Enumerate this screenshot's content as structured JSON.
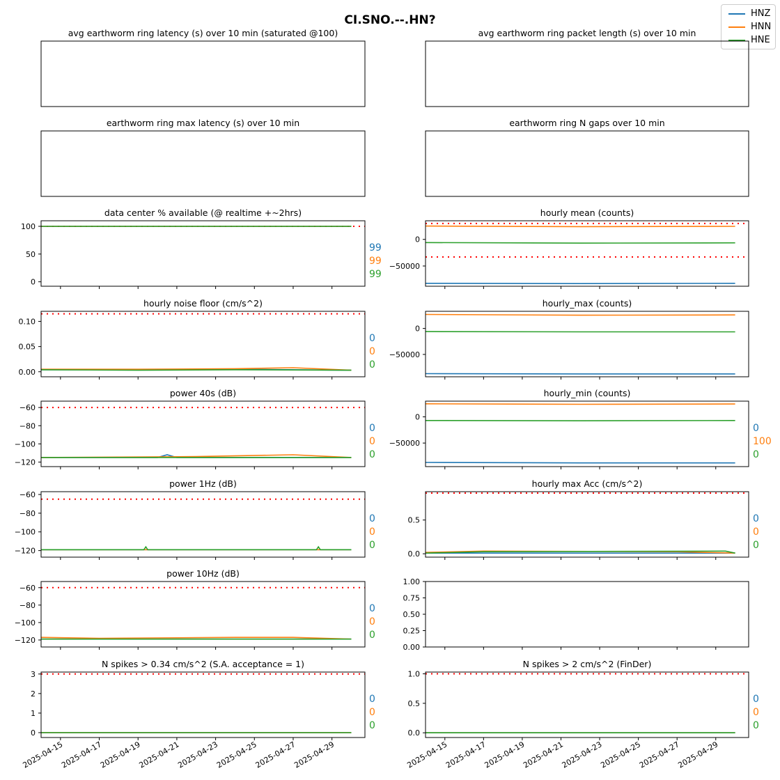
{
  "figure": {
    "title": "CI.SNO.--.HN?",
    "legend": [
      "HNZ",
      "HNN",
      "HNE"
    ]
  },
  "colors": {
    "HNZ": "#1f77b4",
    "HNN": "#ff7f0e",
    "HNE": "#2ca02c",
    "threshold": "#ff0000"
  },
  "chart_data": [
    {
      "id": "avg-latency",
      "type": "line",
      "title": "avg earthworm ring latency (s)   over 10 min (saturated @100)",
      "ticks": false,
      "series": [],
      "side_labels": []
    },
    {
      "id": "avg-packet-length",
      "type": "line",
      "title": "avg earthworm ring packet length (s)   over 10 min",
      "ticks": false,
      "series": [],
      "side_labels": []
    },
    {
      "id": "max-latency",
      "type": "line",
      "title": "earthworm ring max latency (s)   over 10 min",
      "ticks": false,
      "series": [],
      "side_labels": []
    },
    {
      "id": "n-gaps",
      "type": "line",
      "title": "earthworm ring N gaps   over 10 min",
      "ticks": false,
      "series": [],
      "side_labels": []
    },
    {
      "id": "data-available",
      "type": "line",
      "title": "data center % available (@ realtime +~2hrs)",
      "ylim": [
        -8,
        110
      ],
      "yticks": [
        0,
        50,
        100
      ],
      "ytick_labels": [
        "0",
        "50",
        "100"
      ],
      "thresholds": [
        100
      ],
      "series": [
        {
          "channel": "HNZ",
          "values": [
            {
              "x": "2025-04-14",
              "y": 100
            },
            {
              "x": "2025-04-30",
              "y": 100
            }
          ]
        },
        {
          "channel": "HNN",
          "values": [
            {
              "x": "2025-04-14",
              "y": 100
            },
            {
              "x": "2025-04-30",
              "y": 100
            }
          ]
        },
        {
          "channel": "HNE",
          "values": [
            {
              "x": "2025-04-14",
              "y": 100
            },
            {
              "x": "2025-04-30",
              "y": 100
            }
          ]
        }
      ],
      "side_labels": [
        "99",
        "99",
        "99"
      ]
    },
    {
      "id": "hourly-mean",
      "type": "line",
      "title": "hourly mean (counts)",
      "ylim": [
        -88000,
        35000
      ],
      "yticks": [
        0,
        -50000
      ],
      "ytick_labels": [
        "0",
        "−50000"
      ],
      "thresholds": [
        30000,
        -33000
      ],
      "series": [
        {
          "channel": "HNZ",
          "values": [
            {
              "x": "2025-04-14",
              "y": -82500
            },
            {
              "x": "2025-04-22",
              "y": -83000
            },
            {
              "x": "2025-04-30",
              "y": -82500
            }
          ]
        },
        {
          "channel": "HNN",
          "values": [
            {
              "x": "2025-04-14",
              "y": 25000
            },
            {
              "x": "2025-04-22",
              "y": 24000
            },
            {
              "x": "2025-04-30",
              "y": 24500
            }
          ]
        },
        {
          "channel": "HNE",
          "values": [
            {
              "x": "2025-04-14",
              "y": -6000
            },
            {
              "x": "2025-04-22",
              "y": -7000
            },
            {
              "x": "2025-04-30",
              "y": -6500
            }
          ]
        }
      ],
      "side_labels": []
    },
    {
      "id": "noise-floor",
      "type": "line",
      "title": "hourly noise floor (cm/s^2)",
      "ylim": [
        -0.01,
        0.12
      ],
      "yticks": [
        0,
        0.05,
        0.1
      ],
      "ytick_labels": [
        "0.00",
        "0.05",
        "0.10"
      ],
      "thresholds": [
        0.115
      ],
      "series": [
        {
          "channel": "HNZ",
          "values": [
            {
              "x": "2025-04-14",
              "y": 0.004
            },
            {
              "x": "2025-04-19",
              "y": 0.004
            },
            {
              "x": "2025-04-24",
              "y": 0.005
            },
            {
              "x": "2025-04-30",
              "y": 0.003
            }
          ]
        },
        {
          "channel": "HNN",
          "values": [
            {
              "x": "2025-04-14",
              "y": 0.005
            },
            {
              "x": "2025-04-19",
              "y": 0.005
            },
            {
              "x": "2025-04-24",
              "y": 0.006
            },
            {
              "x": "2025-04-27",
              "y": 0.008
            },
            {
              "x": "2025-04-30",
              "y": 0.003
            }
          ]
        },
        {
          "channel": "HNE",
          "values": [
            {
              "x": "2025-04-14",
              "y": 0.004
            },
            {
              "x": "2025-04-19",
              "y": 0.003
            },
            {
              "x": "2025-04-24",
              "y": 0.004
            },
            {
              "x": "2025-04-30",
              "y": 0.003
            }
          ]
        }
      ],
      "side_labels": [
        "0",
        "0",
        "0"
      ]
    },
    {
      "id": "hourly-max",
      "type": "line",
      "title": "hourly_max (counts)",
      "ylim": [
        -93000,
        33000
      ],
      "yticks": [
        0,
        -50000
      ],
      "ytick_labels": [
        "0",
        "−50000"
      ],
      "thresholds": [],
      "series": [
        {
          "channel": "HNZ",
          "values": [
            {
              "x": "2025-04-14",
              "y": -87000
            },
            {
              "x": "2025-04-22",
              "y": -87500
            },
            {
              "x": "2025-04-30",
              "y": -87500
            }
          ]
        },
        {
          "channel": "HNN",
          "values": [
            {
              "x": "2025-04-14",
              "y": 27000
            },
            {
              "x": "2025-04-22",
              "y": 25500
            },
            {
              "x": "2025-04-30",
              "y": 26000
            }
          ]
        },
        {
          "channel": "HNE",
          "values": [
            {
              "x": "2025-04-14",
              "y": -6000
            },
            {
              "x": "2025-04-22",
              "y": -6500
            },
            {
              "x": "2025-04-30",
              "y": -6500
            }
          ]
        }
      ],
      "side_labels": []
    },
    {
      "id": "power-40s",
      "type": "line",
      "title": "power 40s (dB)",
      "ylim": [
        -125,
        -53
      ],
      "yticks": [
        -60,
        -80,
        -100,
        -120
      ],
      "ytick_labels": [
        "−60",
        "−80",
        "−100",
        "−120"
      ],
      "thresholds": [
        -60
      ],
      "series": [
        {
          "channel": "HNZ",
          "values": [
            {
              "x": "2025-04-14",
              "y": -115
            },
            {
              "x": "2025-04-20",
              "y": -115
            },
            {
              "x": "2025-04-20.5",
              "y": -112
            },
            {
              "x": "2025-04-21",
              "y": -115
            },
            {
              "x": "2025-04-30",
              "y": -115
            }
          ]
        },
        {
          "channel": "HNN",
          "values": [
            {
              "x": "2025-04-14",
              "y": -115
            },
            {
              "x": "2025-04-22",
              "y": -114
            },
            {
              "x": "2025-04-27",
              "y": -112
            },
            {
              "x": "2025-04-30",
              "y": -115
            }
          ]
        },
        {
          "channel": "HNE",
          "values": [
            {
              "x": "2025-04-14",
              "y": -115
            },
            {
              "x": "2025-04-22",
              "y": -115
            },
            {
              "x": "2025-04-30",
              "y": -115
            }
          ]
        }
      ],
      "side_labels": [
        "0",
        "0",
        "0"
      ]
    },
    {
      "id": "hourly-min",
      "type": "line",
      "title": "hourly_min (counts)",
      "ylim": [
        -95000,
        30000
      ],
      "yticks": [
        0,
        -50000
      ],
      "ytick_labels": [
        "0",
        "−50000"
      ],
      "thresholds": [],
      "series": [
        {
          "channel": "HNZ",
          "values": [
            {
              "x": "2025-04-14",
              "y": -87000
            },
            {
              "x": "2025-04-22",
              "y": -88000
            },
            {
              "x": "2025-04-30",
              "y": -88000
            }
          ]
        },
        {
          "channel": "HNN",
          "values": [
            {
              "x": "2025-04-14",
              "y": 25000
            },
            {
              "x": "2025-04-22",
              "y": 24000
            },
            {
              "x": "2025-04-30",
              "y": 24500
            }
          ]
        },
        {
          "channel": "HNE",
          "values": [
            {
              "x": "2025-04-14",
              "y": -7000
            },
            {
              "x": "2025-04-22",
              "y": -7500
            },
            {
              "x": "2025-04-30",
              "y": -7000
            }
          ]
        }
      ],
      "side_labels": [
        "0",
        "100",
        "0"
      ]
    },
    {
      "id": "power-1hz",
      "type": "line",
      "title": "power 1Hz (dB)",
      "ylim": [
        -127,
        -57
      ],
      "yticks": [
        -60,
        -80,
        -100,
        -120
      ],
      "ytick_labels": [
        "−60",
        "−80",
        "−100",
        "−120"
      ],
      "thresholds": [
        -65
      ],
      "series": [
        {
          "channel": "HNZ",
          "values": [
            {
              "x": "2025-04-14",
              "y": -119
            },
            {
              "x": "2025-04-30",
              "y": -119
            }
          ]
        },
        {
          "channel": "HNN",
          "values": [
            {
              "x": "2025-04-14",
              "y": -119
            },
            {
              "x": "2025-04-30",
              "y": -119
            }
          ]
        },
        {
          "channel": "HNE",
          "values": [
            {
              "x": "2025-04-14",
              "y": -119
            },
            {
              "x": "2025-04-19.3",
              "y": -119
            },
            {
              "x": "2025-04-19.4",
              "y": -116
            },
            {
              "x": "2025-04-19.5",
              "y": -119
            },
            {
              "x": "2025-04-28.2",
              "y": -119
            },
            {
              "x": "2025-04-28.3",
              "y": -116
            },
            {
              "x": "2025-04-28.4",
              "y": -119
            },
            {
              "x": "2025-04-30",
              "y": -119
            }
          ]
        }
      ],
      "side_labels": [
        "0",
        "0",
        "0"
      ]
    },
    {
      "id": "hourly-max-acc",
      "type": "line",
      "title": "hourly max Acc (cm/s^2)",
      "ylim": [
        -0.05,
        0.92
      ],
      "yticks": [
        0,
        0.5
      ],
      "ytick_labels": [
        "0.0",
        "0.5"
      ],
      "thresholds": [
        0.9
      ],
      "series": [
        {
          "channel": "HNZ",
          "values": [
            {
              "x": "2025-04-14",
              "y": 0.01
            },
            {
              "x": "2025-04-30",
              "y": 0.01
            }
          ]
        },
        {
          "channel": "HNN",
          "values": [
            {
              "x": "2025-04-14",
              "y": 0.02
            },
            {
              "x": "2025-04-17",
              "y": 0.04
            },
            {
              "x": "2025-04-27",
              "y": 0.03
            },
            {
              "x": "2025-04-30",
              "y": 0.01
            }
          ]
        },
        {
          "channel": "HNE",
          "values": [
            {
              "x": "2025-04-14",
              "y": 0.01
            },
            {
              "x": "2025-04-17",
              "y": 0.03
            },
            {
              "x": "2025-04-29.5",
              "y": 0.04
            },
            {
              "x": "2025-04-30",
              "y": 0.01
            }
          ]
        }
      ],
      "side_labels": [
        "0",
        "0",
        "0"
      ]
    },
    {
      "id": "power-10hz",
      "type": "line",
      "title": "power 10Hz (dB)",
      "ylim": [
        -128,
        -53
      ],
      "yticks": [
        -60,
        -80,
        -100,
        -120
      ],
      "ytick_labels": [
        "−60",
        "−80",
        "−100",
        "−120"
      ],
      "thresholds": [
        -60
      ],
      "series": [
        {
          "channel": "HNZ",
          "values": [
            {
              "x": "2025-04-14",
              "y": -119
            },
            {
              "x": "2025-04-30",
              "y": -119
            }
          ]
        },
        {
          "channel": "HNN",
          "values": [
            {
              "x": "2025-04-14",
              "y": -117
            },
            {
              "x": "2025-04-17",
              "y": -118
            },
            {
              "x": "2025-04-24",
              "y": -117
            },
            {
              "x": "2025-04-27",
              "y": -117
            },
            {
              "x": "2025-04-30",
              "y": -119
            }
          ]
        },
        {
          "channel": "HNE",
          "values": [
            {
              "x": "2025-04-14",
              "y": -119
            },
            {
              "x": "2025-04-30",
              "y": -119
            }
          ]
        }
      ],
      "side_labels": [
        "0",
        "0",
        "0"
      ]
    },
    {
      "id": "empty-panel",
      "type": "line",
      "title": "",
      "ylim": [
        0,
        1
      ],
      "yticks": [
        0,
        0.25,
        0.5,
        0.75,
        1
      ],
      "ytick_labels": [
        "0.00",
        "0.25",
        "0.50",
        "0.75",
        "1.00"
      ],
      "thresholds": [],
      "series": [],
      "side_labels": []
    },
    {
      "id": "spikes-034",
      "type": "line",
      "title": "N spikes > 0.34 cm/s^2 (S.A. acceptance = 1)",
      "ylim": [
        -0.25,
        3.1
      ],
      "yticks": [
        0,
        1,
        2,
        3
      ],
      "ytick_labels": [
        "0",
        "1",
        "2",
        "3"
      ],
      "thresholds": [
        3
      ],
      "series": [
        {
          "channel": "HNZ",
          "values": [
            {
              "x": "2025-04-14",
              "y": 0
            },
            {
              "x": "2025-04-30",
              "y": 0
            }
          ]
        },
        {
          "channel": "HNN",
          "values": [
            {
              "x": "2025-04-14",
              "y": 0
            },
            {
              "x": "2025-04-30",
              "y": 0
            }
          ]
        },
        {
          "channel": "HNE",
          "values": [
            {
              "x": "2025-04-14",
              "y": 0
            },
            {
              "x": "2025-04-30",
              "y": 0
            }
          ]
        }
      ],
      "side_labels": [
        "0",
        "0",
        "0"
      ]
    },
    {
      "id": "spikes-2",
      "type": "line",
      "title": "N spikes > 2 cm/s^2 (FinDer)",
      "ylim": [
        -0.08,
        1.03
      ],
      "yticks": [
        0,
        0.5,
        1
      ],
      "ytick_labels": [
        "0.0",
        "0.5",
        "1.0"
      ],
      "thresholds": [
        1
      ],
      "series": [
        {
          "channel": "HNZ",
          "values": [
            {
              "x": "2025-04-14",
              "y": 0
            },
            {
              "x": "2025-04-30",
              "y": 0
            }
          ]
        },
        {
          "channel": "HNN",
          "values": [
            {
              "x": "2025-04-14",
              "y": 0
            },
            {
              "x": "2025-04-30",
              "y": 0
            }
          ]
        },
        {
          "channel": "HNE",
          "values": [
            {
              "x": "2025-04-14",
              "y": 0
            },
            {
              "x": "2025-04-30",
              "y": 0
            }
          ]
        }
      ],
      "side_labels": [
        "0",
        "0",
        "0"
      ]
    }
  ],
  "x_axis": {
    "range": [
      "2025-04-14",
      "2025-04-30.7"
    ],
    "tick_labels": [
      "2025-04-15",
      "2025-04-17",
      "2025-04-19",
      "2025-04-21",
      "2025-04-23",
      "2025-04-25",
      "2025-04-27",
      "2025-04-29"
    ]
  }
}
